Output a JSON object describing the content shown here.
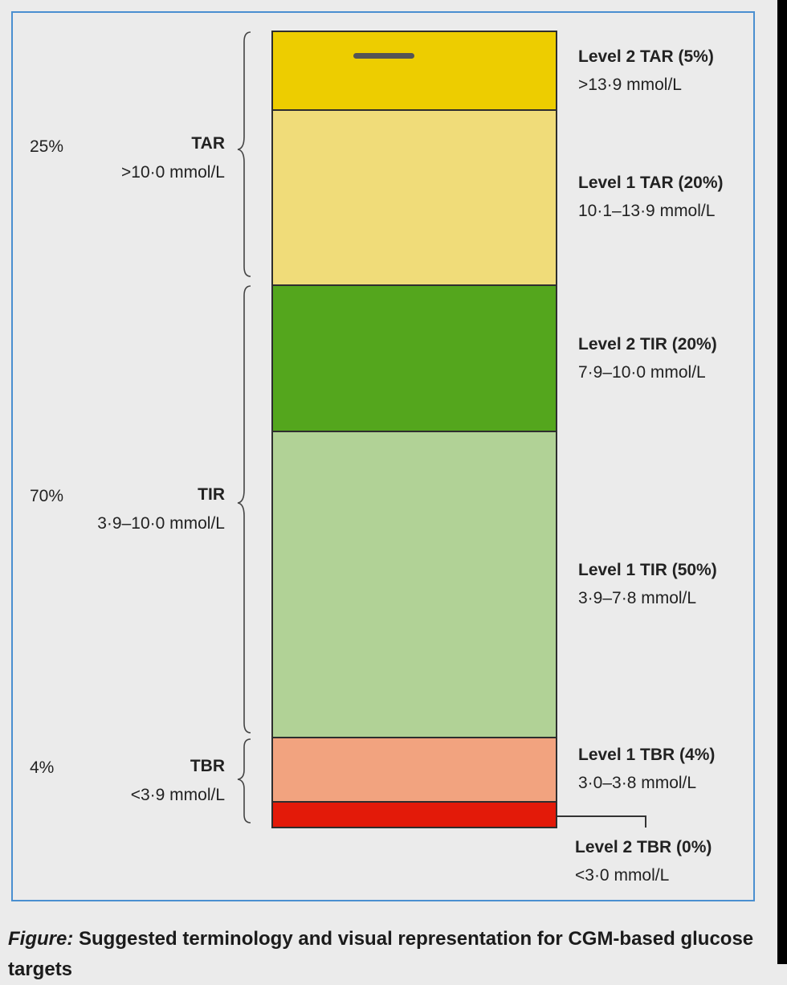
{
  "figure": {
    "segments": [
      {
        "id": "tar2",
        "name": "Level 2 TAR (5%)",
        "range": ">13·9 mmol/L",
        "percent": 5,
        "color": "#edcd00"
      },
      {
        "id": "tar1",
        "name": "Level 1 TAR (20%)",
        "range": "10·1–13·9 mmol/L",
        "percent": 20,
        "color": "#f0dc79"
      },
      {
        "id": "tir2",
        "name": "Level 2 TIR (20%)",
        "range": "7·9–10·0 mmol/L",
        "percent": 20,
        "color": "#54a61d"
      },
      {
        "id": "tir1",
        "name": "Level 1 TIR (50%)",
        "range": "3·9–7·8 mmol/L",
        "percent": 50,
        "color": "#b1d296"
      },
      {
        "id": "tbr1",
        "name": "Level 1 TBR (4%)",
        "range": "3·0–3·8 mmol/L",
        "percent": 4,
        "color": "#f2a37f"
      },
      {
        "id": "tbr2",
        "name": "Level 2 TBR (0%)",
        "range": "<3·0 mmol/L",
        "percent": 0,
        "color": "#e31a09"
      }
    ],
    "groups": [
      {
        "id": "tar",
        "percent": "25%",
        "label": "TAR",
        "range": ">10·0 mmol/L"
      },
      {
        "id": "tir",
        "percent": "70%",
        "label": "TIR",
        "range": "3·9–10·0 mmol/L"
      },
      {
        "id": "tbr",
        "percent": "4%",
        "label": "TBR",
        "range": "<3·9 mmol/L"
      }
    ]
  },
  "caption": {
    "prefix": "Figure:",
    "text": " Suggested terminology and visual representation for CGM-based glucose targets"
  }
}
